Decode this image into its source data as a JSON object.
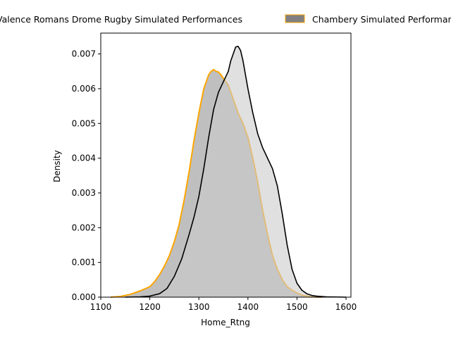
{
  "chart_data": {
    "type": "area",
    "title": "",
    "xlabel": "Home_Rtng",
    "ylabel": "Density",
    "xlim": [
      1100,
      1610
    ],
    "ylim": [
      0,
      0.0076
    ],
    "x_ticks": [
      "1100",
      "1200",
      "1300",
      "1400",
      "1500",
      "1600"
    ],
    "x_tick_values": [
      1100,
      1200,
      1300,
      1400,
      1500,
      1600
    ],
    "y_ticks": [
      "0.000",
      "0.001",
      "0.002",
      "0.003",
      "0.004",
      "0.005",
      "0.006",
      "0.007"
    ],
    "y_tick_values": [
      0,
      0.001,
      0.002,
      0.003,
      0.004,
      0.005,
      0.006,
      0.007
    ],
    "grid": false,
    "legend_position": "top, above plot",
    "series": [
      {
        "name": "Valence Romans Drome Rugby Simulated Performances",
        "line_color": "#000000",
        "fill_color": "#cccccc",
        "x": [
          1150,
          1180,
          1200,
          1220,
          1235,
          1250,
          1265,
          1280,
          1290,
          1300,
          1310,
          1320,
          1330,
          1340,
          1350,
          1360,
          1365,
          1370,
          1375,
          1380,
          1385,
          1390,
          1395,
          1400,
          1410,
          1420,
          1430,
          1440,
          1450,
          1460,
          1470,
          1480,
          1490,
          1500,
          1510,
          1520,
          1530,
          1540,
          1550,
          1560,
          1580,
          1600
        ],
        "y": [
          0.0,
          1e-05,
          3e-05,
          0.0001,
          0.00025,
          0.0006,
          0.0011,
          0.0018,
          0.0023,
          0.0029,
          0.0037,
          0.0046,
          0.0054,
          0.0059,
          0.0062,
          0.0065,
          0.0068,
          0.007,
          0.0072,
          0.00722,
          0.0071,
          0.0068,
          0.0064,
          0.006,
          0.0053,
          0.0047,
          0.0043,
          0.004,
          0.0037,
          0.0032,
          0.0024,
          0.0015,
          0.0008,
          0.0004,
          0.0002,
          0.0001,
          5e-05,
          3e-05,
          2e-05,
          1e-05,
          5e-06,
          0.0
        ]
      },
      {
        "name": "Chambery Simulated Performances",
        "line_color": "#ffa500",
        "fill_color": "#808080",
        "x": [
          1120,
          1140,
          1160,
          1180,
          1200,
          1210,
          1220,
          1230,
          1240,
          1250,
          1260,
          1270,
          1280,
          1290,
          1300,
          1310,
          1320,
          1325,
          1330,
          1335,
          1340,
          1345,
          1350,
          1360,
          1370,
          1380,
          1390,
          1400,
          1410,
          1420,
          1430,
          1440,
          1450,
          1460,
          1470,
          1480,
          1490,
          1500,
          1510,
          1520,
          1530,
          1540,
          1550
        ],
        "y": [
          0.0,
          2e-05,
          8e-05,
          0.00018,
          0.0003,
          0.00045,
          0.00065,
          0.0009,
          0.0012,
          0.0016,
          0.0021,
          0.0028,
          0.0036,
          0.0045,
          0.0053,
          0.006,
          0.0064,
          0.0065,
          0.00655,
          0.0065,
          0.00648,
          0.0064,
          0.0063,
          0.0061,
          0.0057,
          0.0053,
          0.005,
          0.0046,
          0.004,
          0.0033,
          0.0025,
          0.0018,
          0.0012,
          0.0008,
          0.0005,
          0.0003,
          0.0002,
          0.00012,
          6e-05,
          3e-05,
          1e-05,
          5e-06,
          0.0
        ]
      }
    ]
  }
}
